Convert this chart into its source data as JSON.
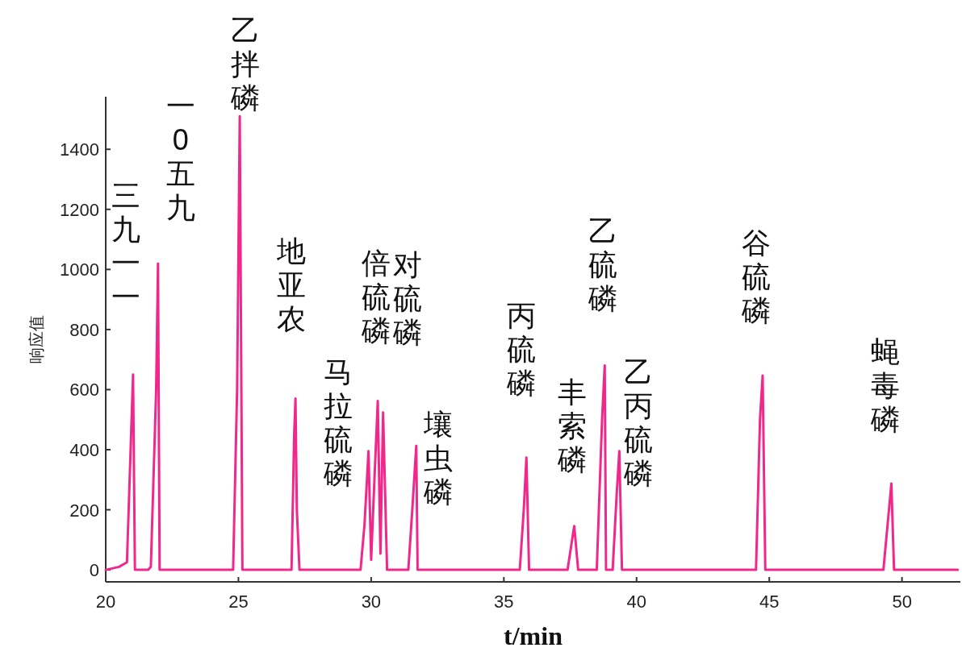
{
  "chart_data": {
    "type": "line",
    "xlabel": "t/min",
    "ylabel": "响应值",
    "x": [
      20,
      20.5,
      20.8,
      21.03,
      21.1,
      21.6,
      21.7,
      21.9,
      21.97,
      22.03,
      24.8,
      24.95,
      25.05,
      25.15,
      27.0,
      27.1,
      27.15,
      27.2,
      27.3,
      29.6,
      29.75,
      29.9,
      30.0,
      30.1,
      30.25,
      30.35,
      30.45,
      30.6,
      31.4,
      31.55,
      31.7,
      31.75,
      35.6,
      35.75,
      35.85,
      35.95,
      37.4,
      37.65,
      37.8,
      38.5,
      38.7,
      38.8,
      38.85,
      39.1,
      39.25,
      39.35,
      39.45,
      44.5,
      44.65,
      44.75,
      44.85,
      49.3,
      49.6,
      49.7,
      52.1
    ],
    "series": [
      {
        "color": "#f0288c",
        "values": [
          0,
          10,
          25,
          650,
          0,
          0,
          10,
          600,
          1020,
          0,
          0,
          600,
          1510,
          0,
          0,
          450,
          570,
          200,
          0,
          0,
          150,
          395,
          33,
          250,
          562,
          54,
          524,
          0,
          0,
          200,
          413,
          0,
          0,
          200,
          374,
          0,
          0,
          146,
          0,
          0,
          500,
          680,
          0,
          0,
          250,
          395,
          0,
          0,
          500,
          647,
          0,
          0,
          287,
          0,
          0
        ]
      }
    ],
    "xlim": [
      20,
      52.2
    ],
    "ylim": [
      -40,
      1575
    ],
    "xticks": [
      20,
      25,
      30,
      35,
      40,
      45,
      50
    ],
    "yticks": [
      0,
      200,
      400,
      600,
      800,
      1000,
      1200,
      1400
    ],
    "annotations": [
      {
        "text": "三九一一",
        "x": 21.03,
        "y": 650
      },
      {
        "text": "一0五九",
        "x": 21.97,
        "y": 1020
      },
      {
        "text": "乙拌磷",
        "x": 25.05,
        "y": 1510
      },
      {
        "text": "地亚农",
        "x": 27.15,
        "y": 570
      },
      {
        "text": "马拉硫磷",
        "x": 29.9,
        "y": 395
      },
      {
        "text": "倍硫磷",
        "x": 30.25,
        "y": 562
      },
      {
        "text": "对硫磷",
        "x": 30.45,
        "y": 524
      },
      {
        "text": "壤虫磷",
        "x": 31.7,
        "y": 413
      },
      {
        "text": "丙硫磷",
        "x": 35.85,
        "y": 374
      },
      {
        "text": "丰索磷",
        "x": 37.65,
        "y": 146
      },
      {
        "text": "乙硫磷",
        "x": 38.8,
        "y": 680
      },
      {
        "text": "乙丙硫磷",
        "x": 39.35,
        "y": 395
      },
      {
        "text": "谷硫磷",
        "x": 44.75,
        "y": 647
      },
      {
        "text": "蝇毒磷",
        "x": 49.6,
        "y": 287
      }
    ]
  }
}
